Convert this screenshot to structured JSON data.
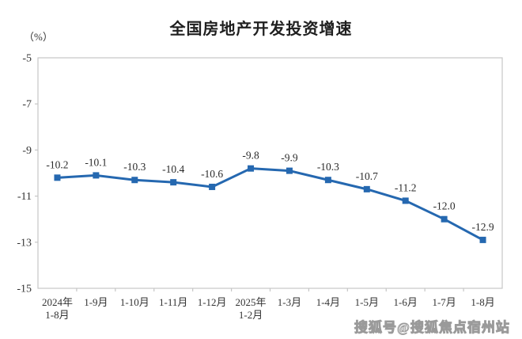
{
  "chart_data": {
    "type": "line",
    "title": "全国房地产开发投资增速",
    "unit_label": "（%）",
    "categories": [
      [
        "2024年",
        "1-8月"
      ],
      [
        "1-9月"
      ],
      [
        "1-10月"
      ],
      [
        "1-11月"
      ],
      [
        "1-12月"
      ],
      [
        "2025年",
        "1-2月"
      ],
      [
        "1-3月"
      ],
      [
        "1-4月"
      ],
      [
        "1-5月"
      ],
      [
        "1-6月"
      ],
      [
        "1-7月"
      ],
      [
        "1-8月"
      ]
    ],
    "series": [
      {
        "name": "全国房地产开发投资增速",
        "values": [
          -10.2,
          -10.1,
          -10.3,
          -10.4,
          -10.6,
          -9.8,
          -9.9,
          -10.3,
          -10.7,
          -11.2,
          -12.0,
          -12.9
        ]
      }
    ],
    "point_labels": [
      "-10.2",
      "-10.1",
      "-10.3",
      "-10.4",
      "-10.6",
      "-9.8",
      "-9.9",
      "-10.3",
      "-10.7",
      "-11.2",
      "-12.0",
      "-12.9"
    ],
    "yticks": [
      -5,
      -7,
      -9,
      -11,
      -13,
      -15
    ],
    "ylim": [
      -15,
      -5
    ],
    "grid": false,
    "legend": "none",
    "line_color": "#2568b0",
    "marker": "square",
    "axis_color": "#c6c6c6",
    "label_color": "#2b2b2b",
    "tick_label_color": "#333333"
  },
  "watermark": {
    "text": "搜狐号@搜狐焦点宿州站"
  }
}
